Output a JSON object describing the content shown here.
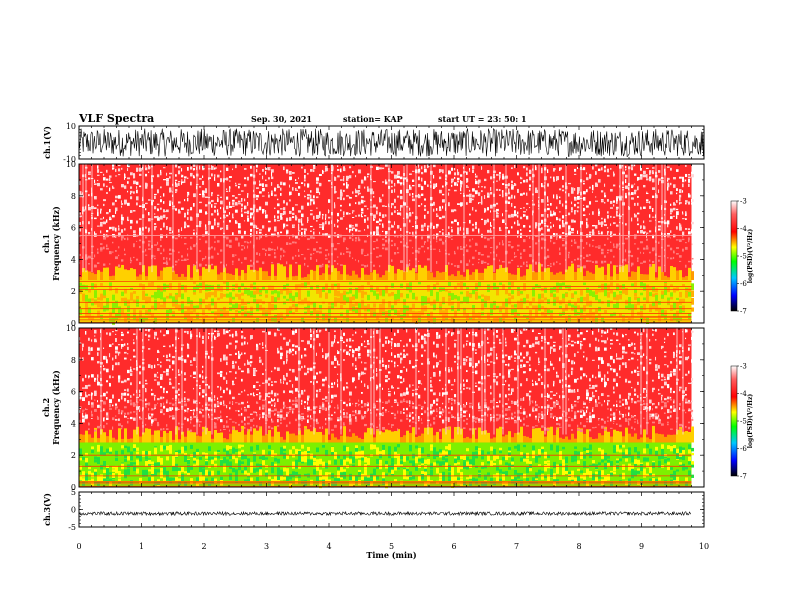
{
  "header": {
    "title": "VLF Spectra",
    "date": "Sep. 30, 2021",
    "station": "station= KAP",
    "start": "start  UT  =   23: 50: 1"
  },
  "colorbar": {
    "label": "log(PSD)(V²/Hz)",
    "ticks": [
      "-3",
      "-4",
      "-5",
      "-6",
      "-7"
    ],
    "range": [
      -7,
      -3
    ],
    "colors": [
      "#000000",
      "#0000ff",
      "#00ffff",
      "#00ff00",
      "#ffff00",
      "#ff0000",
      "#ffffff"
    ]
  },
  "chart_data": [
    {
      "type": "line",
      "name": "ch.1",
      "ylabel": "ch.1(V)",
      "ylim": [
        -10,
        10
      ],
      "yticks": [
        "10",
        "-10"
      ],
      "x_range_min": [
        0,
        10
      ],
      "note_values": "dense noisy waveform filling most of the range, approx -9 to 9 V",
      "color": "#000000"
    },
    {
      "type": "heatmap",
      "name": "ch.1",
      "ylabel": "ch.1 Frequency (kHz)",
      "ylim": [
        0,
        10
      ],
      "yticks": [
        "0",
        "2",
        "4",
        "6",
        "8",
        "10"
      ],
      "x_range_min": [
        0,
        9.8
      ],
      "bands_khz": [
        {
          "from": 0,
          "to": 0.3,
          "level": "orange/red lines"
        },
        {
          "from": 0.3,
          "to": 2.7,
          "level": "yellow-green to yellow (about -4.5 to -5)"
        },
        {
          "from": 2.7,
          "to": 3.5,
          "level": "yellow/orange (about -4)"
        },
        {
          "from": 3.5,
          "to": 5.5,
          "level": "red (about -3.5 to -4)"
        },
        {
          "from": 5.5,
          "to": 10,
          "level": "red speckled with white (about -3 to -3.5)"
        }
      ],
      "horizontal_lines_khz": [
        0.2,
        0.4,
        0.6,
        0.9,
        1.3,
        2.1,
        2.3,
        2.6,
        5.5
      ]
    },
    {
      "type": "heatmap",
      "name": "ch.2",
      "ylabel": "ch.2 Frequency (kHz)",
      "ylim": [
        0,
        10
      ],
      "yticks": [
        "0",
        "2",
        "4",
        "6",
        "8",
        "10"
      ],
      "x_range_min": [
        0,
        9.8
      ],
      "bands_khz": [
        {
          "from": 0,
          "to": 0.2,
          "level": "orange/red lines"
        },
        {
          "from": 0.2,
          "to": 2.8,
          "level": "green to yellow (about -5 to -4.5)"
        },
        {
          "from": 2.8,
          "to": 3.6,
          "level": "orange (about -4)"
        },
        {
          "from": 3.6,
          "to": 10,
          "level": "red speckled with white (about -3 to -3.5)"
        }
      ],
      "horizontal_lines_khz": [
        0.3,
        0.7,
        1.3,
        2.0
      ]
    },
    {
      "type": "line",
      "name": "ch.3",
      "ylabel": "ch.3(V)",
      "ylim": [
        -5,
        5
      ],
      "yticks": [
        "5",
        "0",
        "-5"
      ],
      "x_range_min": [
        0,
        9.8
      ],
      "note_values": "dense waveform between about -1.6 and -0.7 V",
      "color": "#000000"
    }
  ],
  "x_axis": {
    "label": "Time (min)",
    "min": 0,
    "max": 10,
    "ticks": [
      "0",
      "1",
      "2",
      "3",
      "4",
      "5",
      "6",
      "7",
      "8",
      "9",
      "10"
    ]
  }
}
